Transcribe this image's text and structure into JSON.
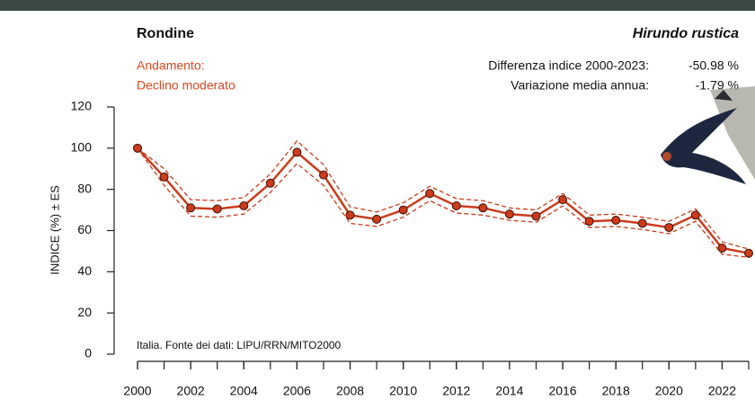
{
  "chart_data": {
    "type": "line",
    "title": "Rondine",
    "subtitle": "Hirundo rustica",
    "ylabel": "INDICE (%) ± ES",
    "annotations": {
      "trend_label": "Andamento:",
      "trend": "Declino moderato",
      "difference_label": "Differenza indice 2000-2023:",
      "difference": "-50.98 %",
      "mean_change_label": "Variazione media annua:",
      "mean_change": "-1.79 %",
      "source": "Italia. Fonte dei dati: LIPU/RRN/MITO2000"
    },
    "x": [
      2000,
      2001,
      2002,
      2003,
      2004,
      2005,
      2006,
      2007,
      2008,
      2009,
      2010,
      2011,
      2012,
      2013,
      2014,
      2015,
      2016,
      2017,
      2018,
      2019,
      2020,
      2021,
      2022,
      2023
    ],
    "values": [
      100,
      86,
      71,
      70.5,
      72,
      83,
      98,
      87,
      67.5,
      65.5,
      70,
      78,
      72,
      71,
      68,
      67,
      75,
      64.5,
      65,
      63.5,
      61.5,
      67.5,
      51.5,
      49
    ],
    "errors": [
      0,
      4,
      4,
      4,
      4,
      4.5,
      5.5,
      5,
      4,
      3.5,
      3.5,
      3.5,
      3.5,
      3.5,
      3,
      3,
      3,
      3,
      3,
      3,
      3,
      3,
      3,
      2
    ],
    "color": "#cc3b1c",
    "xlim": [
      2000,
      2023
    ],
    "xticks": [
      2000,
      2002,
      2004,
      2006,
      2008,
      2010,
      2012,
      2014,
      2016,
      2018,
      2020,
      2022
    ],
    "ylim": [
      0,
      120
    ],
    "yticks": [
      0,
      20,
      40,
      60,
      80,
      100,
      120
    ]
  }
}
